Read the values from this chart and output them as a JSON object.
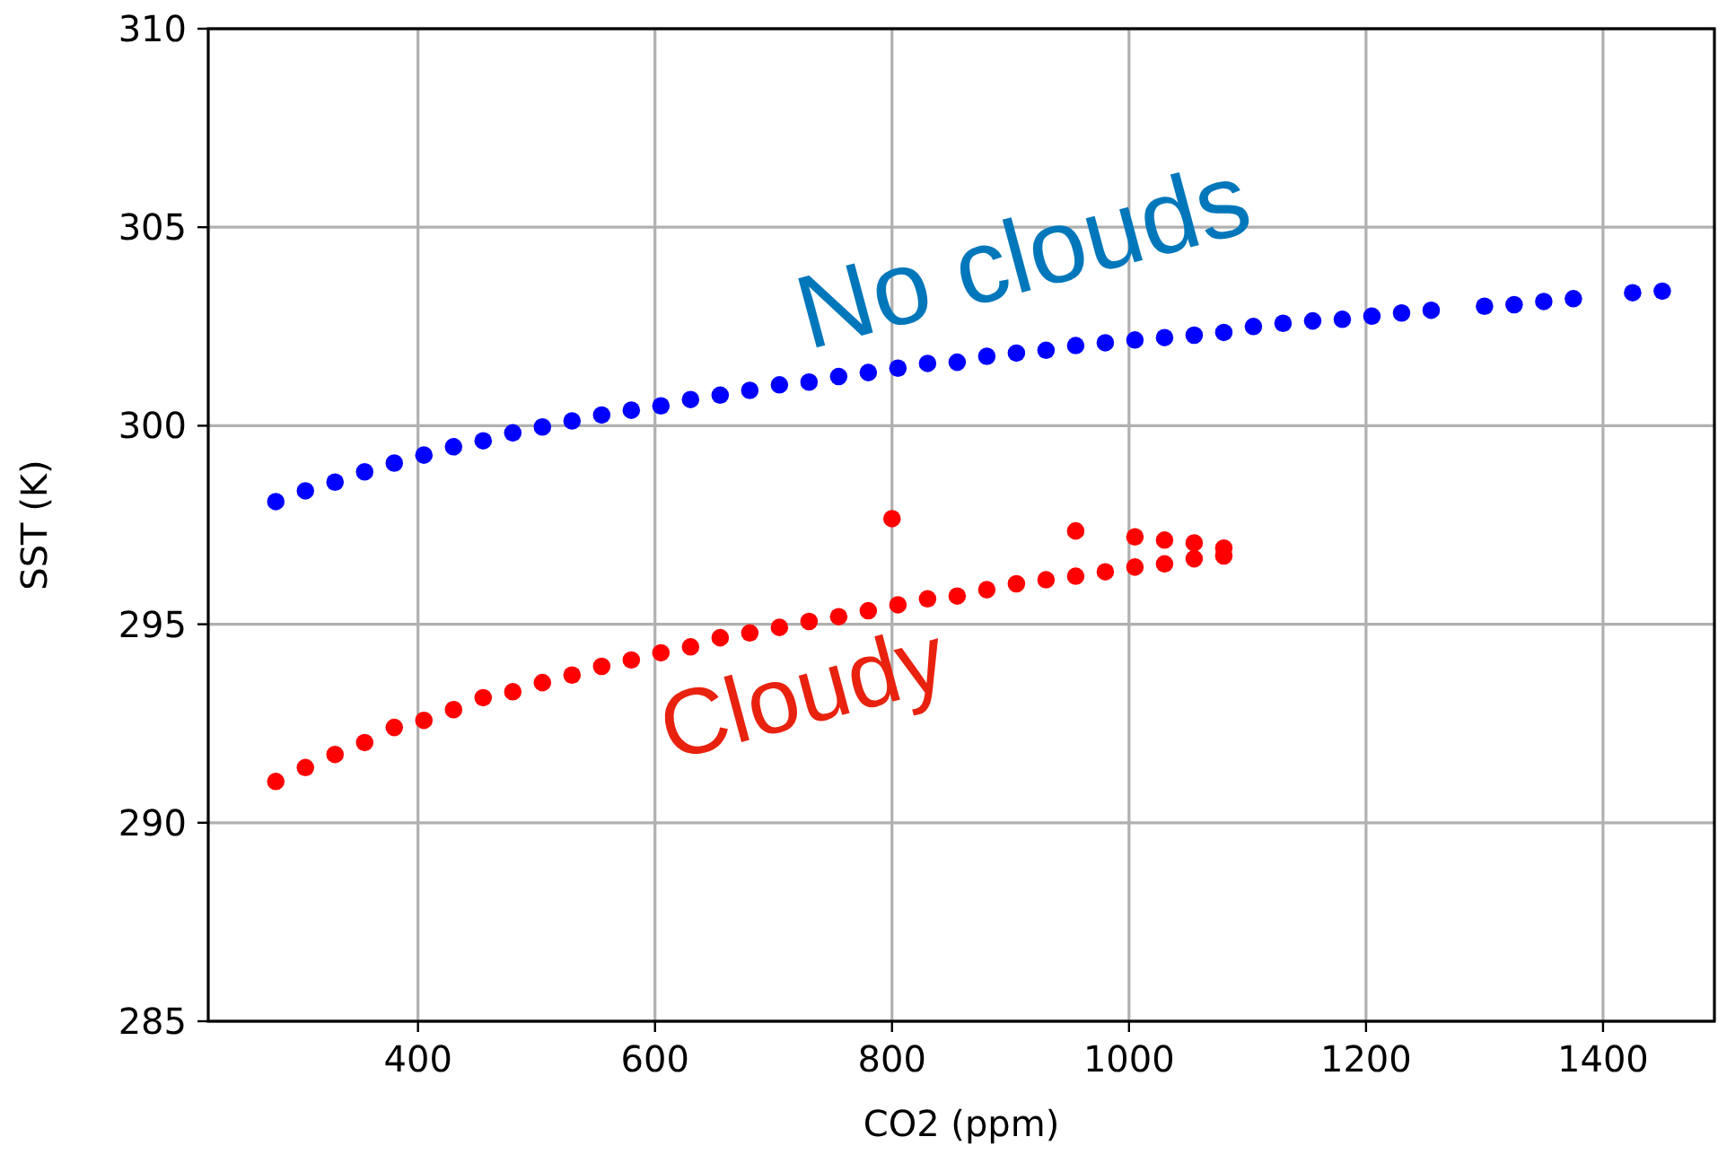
{
  "chart_data": {
    "type": "scatter",
    "xlabel": "CO2 (ppm)",
    "ylabel": "SST (K)",
    "xlim": [
      223,
      1494
    ],
    "ylim": [
      285,
      310
    ],
    "xticks": [
      400,
      600,
      800,
      1000,
      1200,
      1400
    ],
    "yticks": [
      285,
      290,
      295,
      300,
      305,
      310
    ],
    "grid": true,
    "marker": "circle",
    "series": [
      {
        "name": "No clouds",
        "color": "#0000ff",
        "x": [
          280,
          305,
          330,
          355,
          380,
          405,
          430,
          455,
          480,
          505,
          530,
          555,
          580,
          605,
          630,
          655,
          680,
          705,
          730,
          755,
          780,
          805,
          830,
          855,
          880,
          905,
          930,
          955,
          980,
          1005,
          1030,
          1055,
          1080,
          1105,
          1130,
          1155,
          1180,
          1205,
          1230,
          1255,
          1300,
          1325,
          1350,
          1375,
          1425,
          1450
        ],
        "values": [
          298.09,
          298.36,
          298.58,
          298.84,
          299.06,
          299.26,
          299.47,
          299.62,
          299.82,
          299.97,
          300.12,
          300.27,
          300.39,
          300.5,
          300.66,
          300.77,
          300.89,
          301.03,
          301.1,
          301.24,
          301.34,
          301.45,
          301.57,
          301.6,
          301.75,
          301.83,
          301.9,
          302.02,
          302.09,
          302.16,
          302.22,
          302.28,
          302.35,
          302.5,
          302.58,
          302.64,
          302.68,
          302.76,
          302.84,
          302.91,
          303.01,
          303.05,
          303.13,
          303.2,
          303.35,
          303.39
        ]
      },
      {
        "name": "Cloudy",
        "color": "#ff0000",
        "x": [
          280,
          305,
          330,
          355,
          380,
          405,
          430,
          455,
          480,
          505,
          530,
          555,
          580,
          605,
          630,
          655,
          680,
          705,
          730,
          755,
          780,
          805,
          830,
          855,
          880,
          905,
          930,
          955,
          980,
          1005,
          1030,
          1055,
          1080,
          800,
          955,
          1005,
          1030,
          1055,
          1080
        ],
        "values": [
          291.04,
          291.39,
          291.72,
          292.02,
          292.4,
          292.58,
          292.85,
          293.15,
          293.3,
          293.53,
          293.72,
          293.94,
          294.1,
          294.28,
          294.43,
          294.66,
          294.78,
          294.92,
          295.07,
          295.19,
          295.34,
          295.49,
          295.64,
          295.71,
          295.87,
          296.02,
          296.12,
          296.21,
          296.32,
          296.44,
          296.52,
          296.65,
          296.72,
          297.66,
          297.35,
          297.2,
          297.12,
          297.05,
          296.92
        ]
      }
    ]
  }
}
